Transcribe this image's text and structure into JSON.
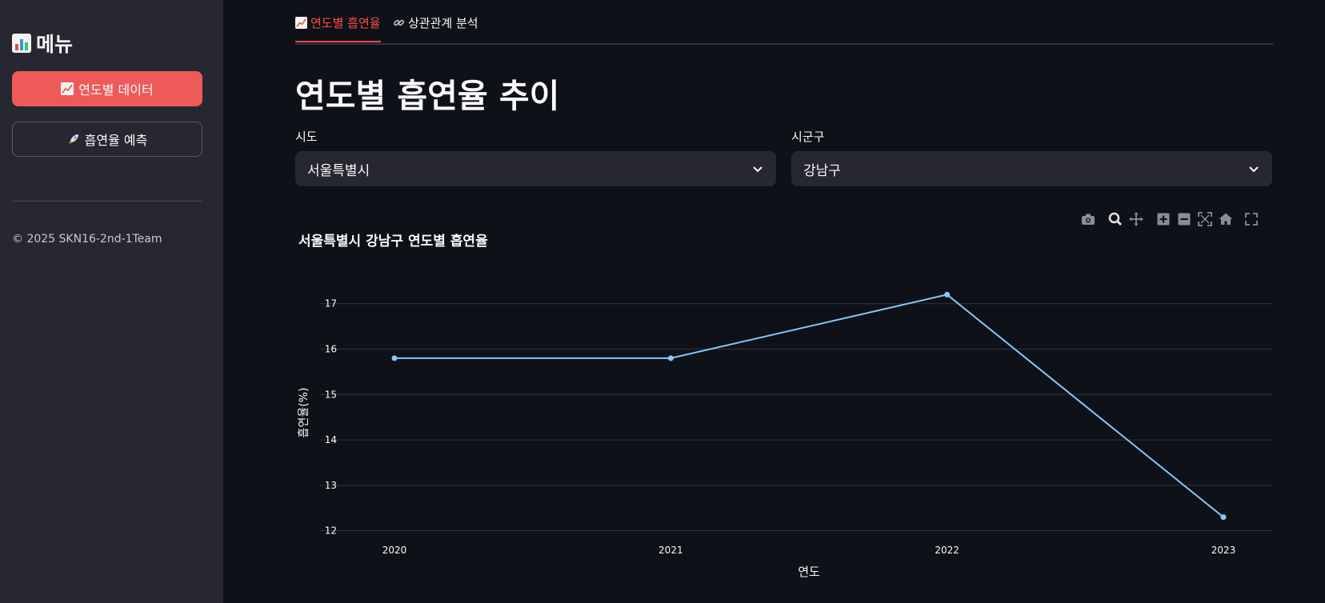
{
  "sidebar": {
    "title": "메뉴",
    "buttons": [
      {
        "label": "연도별 데이터",
        "icon": "chart-increasing-icon",
        "active": true
      },
      {
        "label": "흡연율 예측",
        "icon": "rocket-icon",
        "active": false
      }
    ],
    "footer": "© 2025 SKN16-2nd-1Team"
  },
  "tabs": [
    {
      "label": "연도별 흡연율",
      "icon": "chart-increasing-icon",
      "active": true
    },
    {
      "label": "상관관계 분석",
      "icon": "link-icon",
      "active": false
    }
  ],
  "page_title": "연도별 흡연율 추이",
  "filters": {
    "sido": {
      "label": "시도",
      "value": "서울특별시"
    },
    "sigungu": {
      "label": "시군구",
      "value": "강남구"
    }
  },
  "modebar": [
    "camera-icon",
    "zoom-icon",
    "pan-icon",
    "zoom-in-icon",
    "zoom-out-icon",
    "autoscale-icon",
    "home-icon",
    "fullscreen-icon"
  ],
  "chart_data": {
    "type": "line",
    "title": "서울특별시 강남구 연도별 흡연율",
    "xlabel": "연도",
    "ylabel": "흡연율(%)",
    "x": [
      "2020",
      "2021",
      "2022",
      "2023"
    ],
    "values": [
      15.8,
      15.8,
      17.2,
      12.3
    ],
    "ylim": [
      11.8,
      17.7
    ],
    "yticks": [
      12,
      13,
      14,
      15,
      16,
      17
    ],
    "grid": true,
    "line_color": "#83c9ff"
  }
}
